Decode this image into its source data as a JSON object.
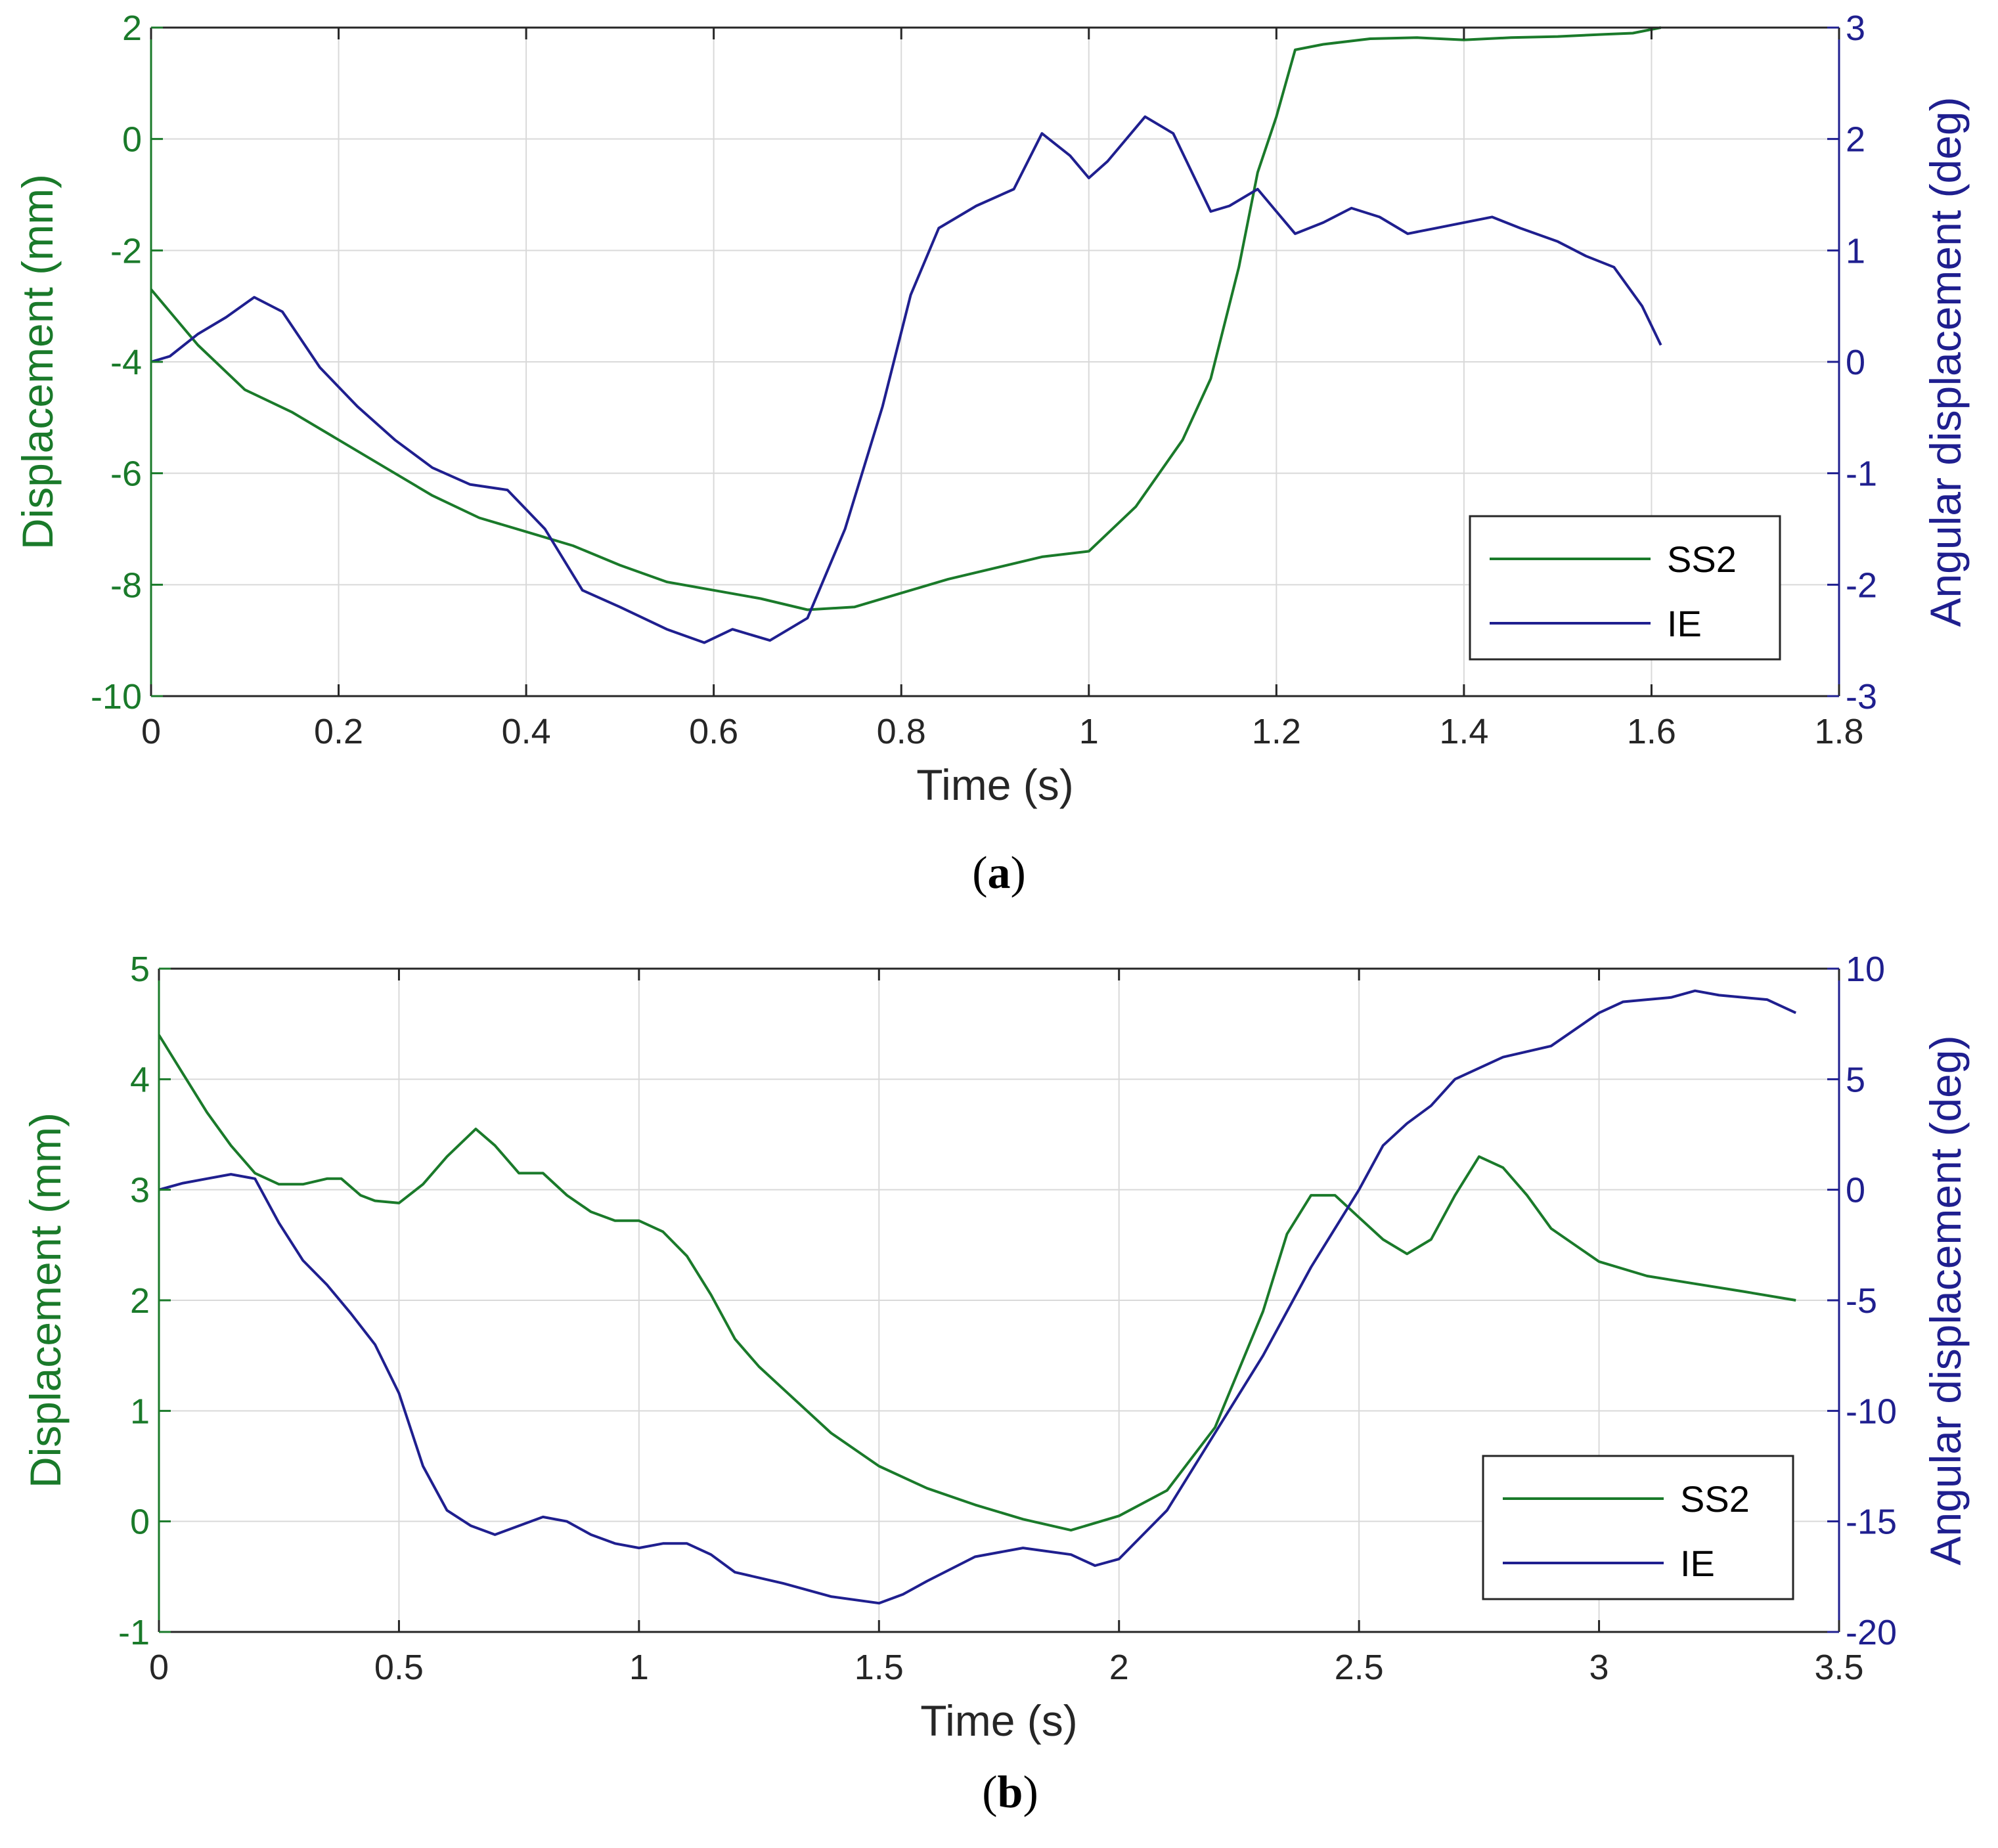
{
  "colors": {
    "green": "#1a7a2a",
    "blue": "#1f1f8f",
    "grid": "#d9d9d9",
    "axis": "#262626"
  },
  "chart_data": [
    {
      "type": "line",
      "panel_label": "a",
      "xlabel": "Time (s)",
      "ylabel_left": "Displacement (mm)",
      "ylabel_right": "Angular displacement (deg)",
      "xlim": [
        0,
        1.8
      ],
      "ylim_left": [
        -10,
        2
      ],
      "ylim_right": [
        -3,
        3
      ],
      "xticks": [
        0,
        0.2,
        0.4,
        0.6,
        0.8,
        1,
        1.2,
        1.4,
        1.6,
        1.8
      ],
      "xtick_labels": [
        "0",
        "0.2",
        "0.4",
        "0.6",
        "0.8",
        "1",
        "1.2",
        "1.4",
        "1.6",
        "1.8"
      ],
      "yticks_left": [
        -10,
        -8,
        -6,
        -4,
        -2,
        0,
        2
      ],
      "ytick_labels_left": [
        "-10",
        "-8",
        "-6",
        "-4",
        "-2",
        "0",
        "2"
      ],
      "yticks_right": [
        -3,
        -2,
        -1,
        0,
        1,
        2,
        3
      ],
      "ytick_labels_right": [
        "-3",
        "-2",
        "-1",
        "0",
        "1",
        "2",
        "3"
      ],
      "legend": [
        "SS2",
        "IE"
      ],
      "series": [
        {
          "name": "SS2",
          "axis": "left",
          "color": "#1a7a2a",
          "x": [
            0,
            0.05,
            0.1,
            0.15,
            0.2,
            0.25,
            0.3,
            0.35,
            0.4,
            0.45,
            0.5,
            0.55,
            0.6,
            0.65,
            0.7,
            0.75,
            0.8,
            0.85,
            0.9,
            0.95,
            1.0,
            1.05,
            1.1,
            1.13,
            1.16,
            1.18,
            1.2,
            1.22,
            1.25,
            1.3,
            1.35,
            1.4,
            1.45,
            1.5,
            1.55,
            1.58,
            1.61
          ],
          "y": [
            -2.7,
            -3.7,
            -4.5,
            -4.9,
            -5.4,
            -5.9,
            -6.4,
            -6.8,
            -7.05,
            -7.3,
            -7.65,
            -7.95,
            -8.1,
            -8.25,
            -8.45,
            -8.4,
            -8.15,
            -7.9,
            -7.7,
            -7.5,
            -7.4,
            -6.6,
            -5.4,
            -4.3,
            -2.3,
            -0.6,
            0.4,
            1.6,
            1.7,
            1.8,
            1.82,
            1.78,
            1.82,
            1.84,
            1.88,
            1.9,
            2.0
          ]
        },
        {
          "name": "IE",
          "axis": "right",
          "color": "#1f1f8f",
          "x": [
            0,
            0.02,
            0.05,
            0.08,
            0.11,
            0.14,
            0.18,
            0.22,
            0.26,
            0.3,
            0.34,
            0.38,
            0.42,
            0.46,
            0.5,
            0.55,
            0.59,
            0.62,
            0.66,
            0.7,
            0.74,
            0.78,
            0.81,
            0.84,
            0.88,
            0.92,
            0.95,
            0.98,
            1.0,
            1.02,
            1.06,
            1.09,
            1.11,
            1.13,
            1.15,
            1.18,
            1.2,
            1.22,
            1.25,
            1.28,
            1.31,
            1.34,
            1.37,
            1.4,
            1.43,
            1.46,
            1.5,
            1.53,
            1.56,
            1.59,
            1.61
          ],
          "y": [
            0.0,
            0.05,
            0.25,
            0.4,
            0.58,
            0.45,
            -0.05,
            -0.4,
            -0.7,
            -0.95,
            -1.1,
            -1.15,
            -1.5,
            -2.05,
            -2.2,
            -2.4,
            -2.52,
            -2.4,
            -2.5,
            -2.3,
            -1.5,
            -0.4,
            0.6,
            1.2,
            1.4,
            1.55,
            2.05,
            1.85,
            1.65,
            1.8,
            2.2,
            2.05,
            1.7,
            1.35,
            1.4,
            1.55,
            1.35,
            1.15,
            1.25,
            1.38,
            1.3,
            1.15,
            1.2,
            1.25,
            1.3,
            1.2,
            1.08,
            0.95,
            0.85,
            0.5,
            0.15
          ]
        }
      ]
    },
    {
      "type": "line",
      "panel_label": "b",
      "xlabel": "Time (s)",
      "ylabel_left": "Displacement (mm)",
      "ylabel_right": "Angular displacement (deg)",
      "xlim": [
        0,
        3.5
      ],
      "ylim_left": [
        -1,
        5
      ],
      "ylim_right": [
        -20,
        10
      ],
      "xticks": [
        0,
        0.5,
        1,
        1.5,
        2,
        2.5,
        3,
        3.5
      ],
      "xtick_labels": [
        "0",
        "0.5",
        "1",
        "1.5",
        "2",
        "2.5",
        "3",
        "3.5"
      ],
      "yticks_left": [
        -1,
        0,
        1,
        2,
        3,
        4,
        5
      ],
      "ytick_labels_left": [
        "-1",
        "0",
        "1",
        "2",
        "3",
        "4",
        "5"
      ],
      "yticks_right": [
        -20,
        -15,
        -10,
        -5,
        0,
        5,
        10
      ],
      "ytick_labels_right": [
        "-20",
        "-15",
        "-10",
        "-5",
        "0",
        "5",
        "10"
      ],
      "legend": [
        "SS2",
        "IE"
      ],
      "series": [
        {
          "name": "SS2",
          "axis": "left",
          "color": "#1a7a2a",
          "x": [
            0,
            0.05,
            0.1,
            0.15,
            0.2,
            0.25,
            0.3,
            0.35,
            0.38,
            0.42,
            0.45,
            0.5,
            0.55,
            0.6,
            0.66,
            0.7,
            0.75,
            0.8,
            0.85,
            0.9,
            0.95,
            1.0,
            1.05,
            1.1,
            1.15,
            1.2,
            1.25,
            1.3,
            1.4,
            1.5,
            1.6,
            1.7,
            1.8,
            1.9,
            2.0,
            2.1,
            2.2,
            2.3,
            2.35,
            2.4,
            2.45,
            2.5,
            2.55,
            2.6,
            2.65,
            2.7,
            2.75,
            2.8,
            2.85,
            2.9,
            3.0,
            3.1,
            3.2,
            3.3,
            3.41
          ],
          "y": [
            4.4,
            4.05,
            3.7,
            3.4,
            3.15,
            3.05,
            3.05,
            3.1,
            3.1,
            2.95,
            2.9,
            2.88,
            3.05,
            3.3,
            3.55,
            3.4,
            3.15,
            3.15,
            2.95,
            2.8,
            2.72,
            2.72,
            2.62,
            2.4,
            2.05,
            1.65,
            1.4,
            1.2,
            0.8,
            0.5,
            0.3,
            0.15,
            0.02,
            -0.08,
            0.05,
            0.28,
            0.85,
            1.9,
            2.6,
            2.95,
            2.95,
            2.75,
            2.55,
            2.42,
            2.55,
            2.95,
            3.3,
            3.2,
            2.95,
            2.65,
            2.35,
            2.22,
            2.15,
            2.08,
            2.0
          ]
        },
        {
          "name": "IE",
          "axis": "right",
          "color": "#1f1f8f",
          "x": [
            0,
            0.05,
            0.1,
            0.15,
            0.2,
            0.25,
            0.3,
            0.35,
            0.4,
            0.45,
            0.5,
            0.55,
            0.6,
            0.65,
            0.7,
            0.75,
            0.8,
            0.85,
            0.9,
            0.95,
            1.0,
            1.05,
            1.1,
            1.15,
            1.2,
            1.3,
            1.4,
            1.5,
            1.55,
            1.6,
            1.7,
            1.8,
            1.9,
            1.95,
            2.0,
            2.1,
            2.2,
            2.3,
            2.4,
            2.5,
            2.55,
            2.6,
            2.65,
            2.7,
            2.8,
            2.9,
            3.0,
            3.05,
            3.1,
            3.15,
            3.2,
            3.25,
            3.3,
            3.35,
            3.41
          ],
          "y": [
            0.0,
            0.3,
            0.5,
            0.7,
            0.5,
            -1.5,
            -3.2,
            -4.3,
            -5.6,
            -7.0,
            -9.2,
            -12.5,
            -14.5,
            -15.2,
            -15.6,
            -15.2,
            -14.8,
            -15.0,
            -15.6,
            -16.0,
            -16.2,
            -16.0,
            -16.0,
            -16.5,
            -17.3,
            -17.8,
            -18.4,
            -18.7,
            -18.3,
            -17.7,
            -16.6,
            -16.2,
            -16.5,
            -17.0,
            -16.7,
            -14.5,
            -11.0,
            -7.5,
            -3.5,
            0.0,
            2.0,
            3.0,
            3.8,
            5.0,
            6.0,
            6.5,
            8.0,
            8.5,
            8.6,
            8.7,
            9.0,
            8.8,
            8.7,
            8.6,
            8.0
          ]
        }
      ]
    }
  ]
}
